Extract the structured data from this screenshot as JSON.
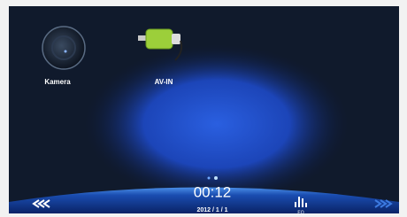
{
  "icons": [
    {
      "label": "Kamera"
    },
    {
      "label": "AV-IN"
    }
  ],
  "status": {
    "time": "00:12",
    "date": "2012 / 1 / 1",
    "eq_label": "EQ"
  }
}
